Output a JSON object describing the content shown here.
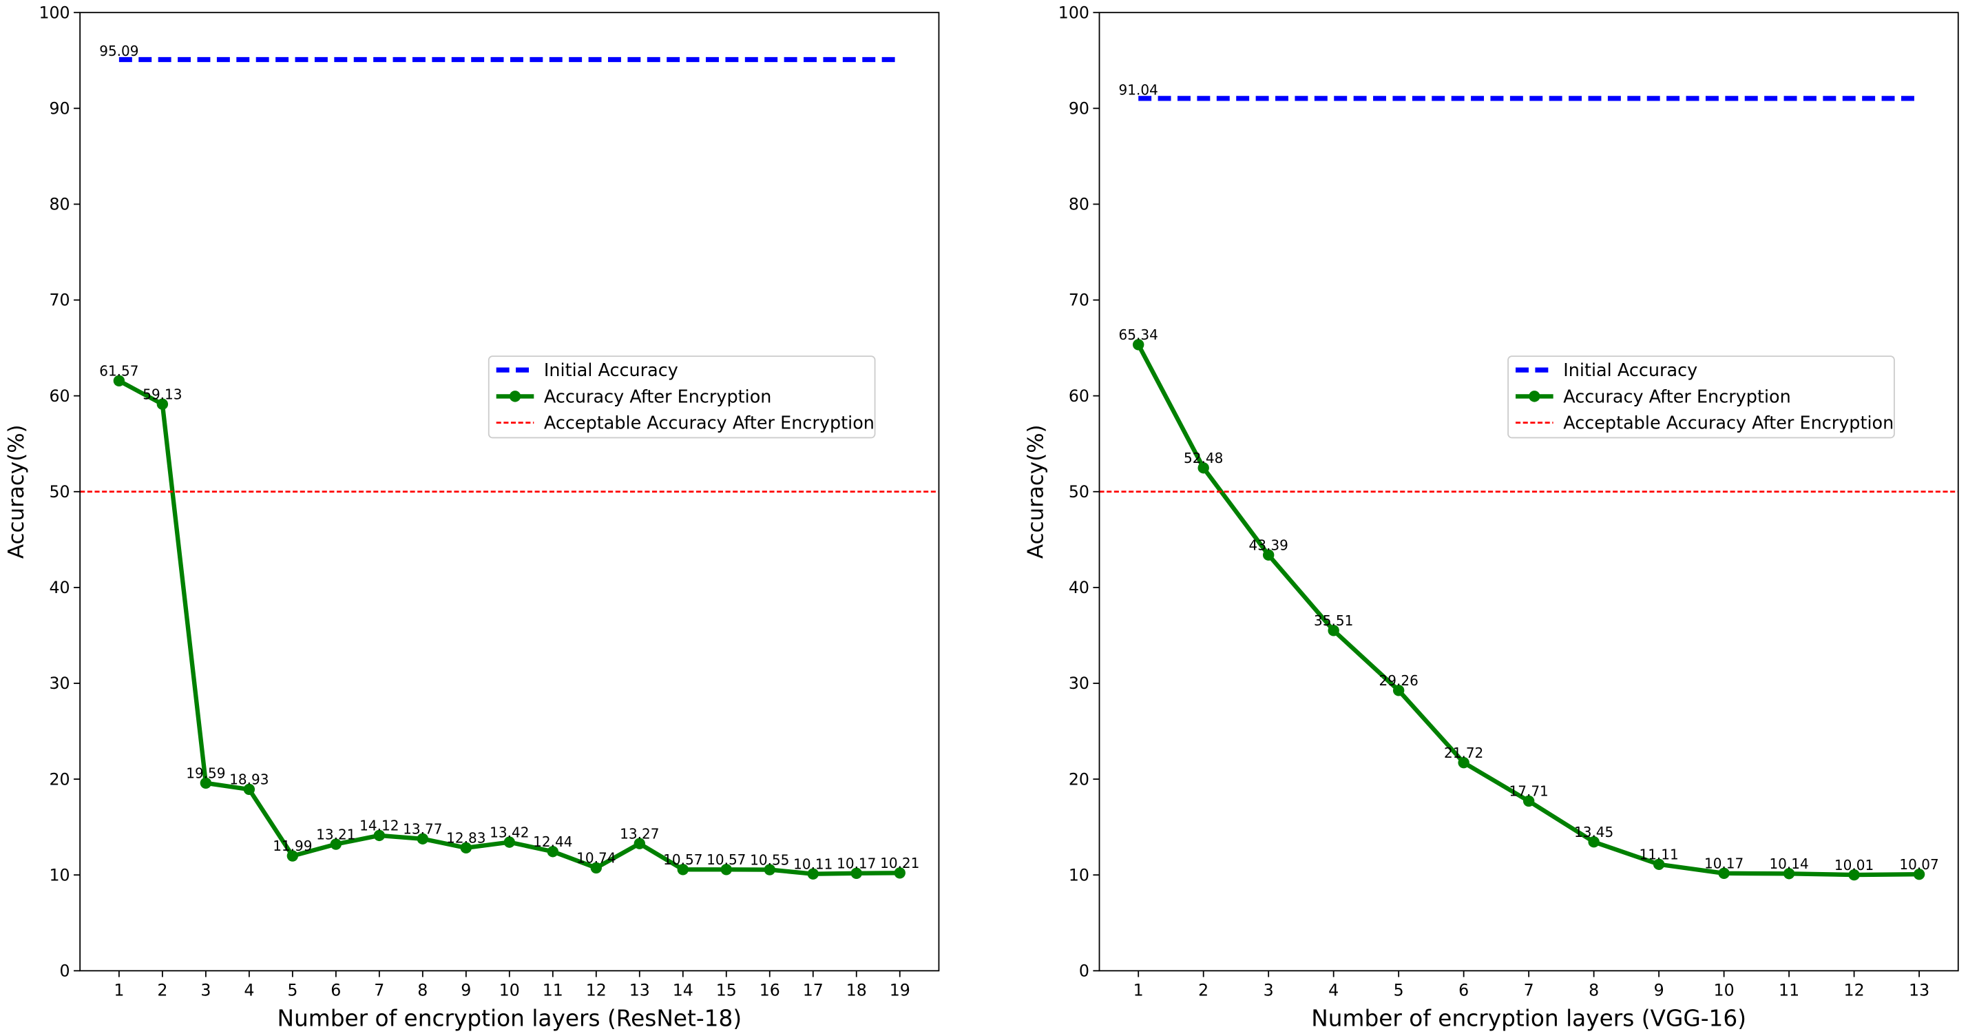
{
  "chart_data": [
    {
      "type": "line",
      "xlabel": "Number of encryption layers (ResNet-18)",
      "ylabel": "Accuracy(%)",
      "x": [
        1,
        2,
        3,
        4,
        5,
        6,
        7,
        8,
        9,
        10,
        11,
        12,
        13,
        14,
        15,
        16,
        17,
        18,
        19
      ],
      "xlim": [
        0.1,
        19.9
      ],
      "xticks": [
        1,
        2,
        3,
        4,
        5,
        6,
        7,
        8,
        9,
        10,
        11,
        12,
        13,
        14,
        15,
        16,
        17,
        18,
        19
      ],
      "ylim": [
        0,
        100
      ],
      "yticks": [
        0,
        10,
        20,
        30,
        40,
        50,
        60,
        70,
        80,
        90,
        100
      ],
      "legend": "center right",
      "series": [
        {
          "name": "Initial Accuracy",
          "kind": "hline",
          "span": "data",
          "linestyle": "dashed",
          "linewidth": 4,
          "color": "#0000ff",
          "value": 95.09,
          "show_label": true
        },
        {
          "name": "Accuracy After Encryption",
          "color": "#008000",
          "linewidth": 3.5,
          "marker": "circle",
          "values": [
            61.57,
            59.13,
            19.59,
            18.93,
            11.99,
            13.21,
            14.12,
            13.77,
            12.83,
            13.42,
            12.44,
            10.74,
            13.27,
            10.57,
            10.57,
            10.55,
            10.11,
            10.17,
            10.21
          ]
        },
        {
          "name": "Acceptable Accuracy After Encryption",
          "kind": "hline",
          "span": "axis",
          "linestyle": "dashed",
          "linewidth": 1.5,
          "color": "#ff0000",
          "value": 50,
          "show_label": false
        }
      ]
    },
    {
      "type": "line",
      "xlabel": "Number of encryption layers (VGG-16)",
      "ylabel": "Accuracy(%)",
      "x": [
        1,
        2,
        3,
        4,
        5,
        6,
        7,
        8,
        9,
        10,
        11,
        12,
        13
      ],
      "xlim": [
        0.4,
        13.6
      ],
      "xticks": [
        1,
        2,
        3,
        4,
        5,
        6,
        7,
        8,
        9,
        10,
        11,
        12,
        13
      ],
      "ylim": [
        0,
        100
      ],
      "yticks": [
        0,
        10,
        20,
        30,
        40,
        50,
        60,
        70,
        80,
        90,
        100
      ],
      "legend": "center right",
      "series": [
        {
          "name": "Initial Accuracy",
          "kind": "hline",
          "span": "data",
          "linestyle": "dashed",
          "linewidth": 4,
          "color": "#0000ff",
          "value": 91.04,
          "show_label": true
        },
        {
          "name": "Accuracy After Encryption",
          "color": "#008000",
          "linewidth": 3.5,
          "marker": "circle",
          "values": [
            65.34,
            52.48,
            43.39,
            35.51,
            29.26,
            21.72,
            17.71,
            13.45,
            11.11,
            10.17,
            10.14,
            10.01,
            10.07
          ]
        },
        {
          "name": "Acceptable Accuracy After Encryption",
          "kind": "hline",
          "span": "axis",
          "linestyle": "dashed",
          "linewidth": 1.5,
          "color": "#ff0000",
          "value": 50,
          "show_label": false
        }
      ]
    }
  ]
}
